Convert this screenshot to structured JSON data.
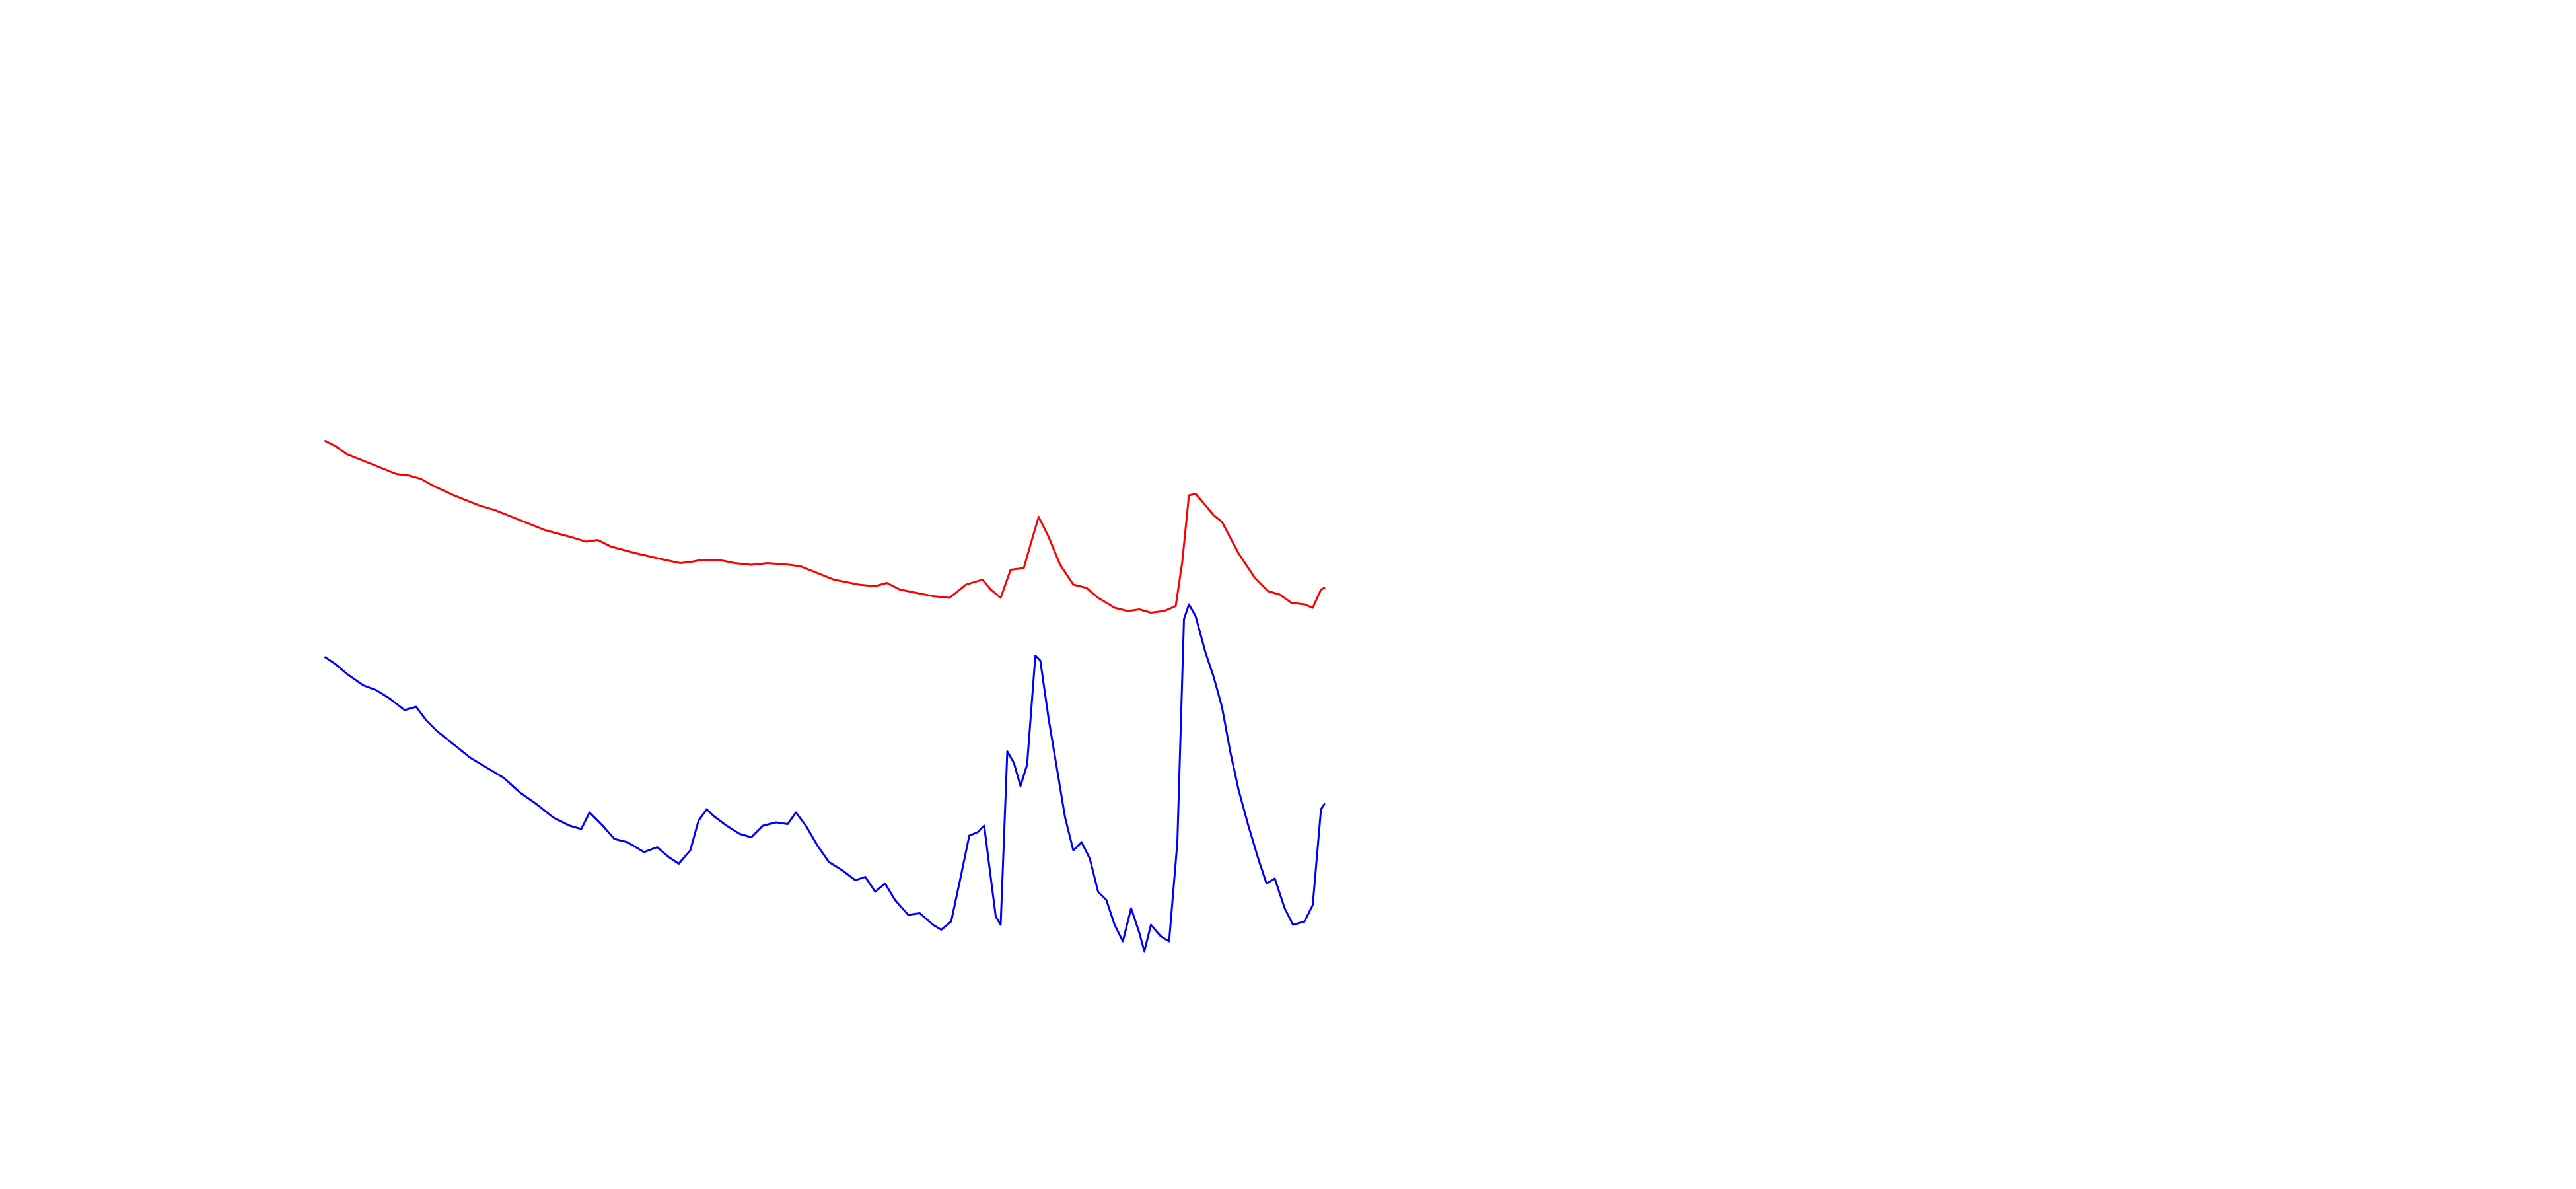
{
  "chart_data": {
    "type": "line",
    "xlim": [
      0,
      1560
    ],
    "ylim": [
      0,
      720
    ],
    "series": [
      {
        "color": "#ff0000",
        "x": [
          197,
          203,
          210,
          220,
          230,
          240,
          248,
          255,
          262,
          275,
          290,
          300,
          315,
          330,
          345,
          355,
          362,
          370,
          385,
          398,
          412,
          420,
          425,
          435,
          445,
          455,
          465,
          478,
          485,
          495,
          505,
          520,
          530,
          537,
          545,
          555,
          565,
          575,
          585,
          595,
          600,
          606,
          612,
          620,
          624,
          629,
          635,
          642,
          650,
          658,
          665,
          675,
          683,
          690,
          697,
          705,
          712,
          716,
          720,
          724,
          730,
          735,
          740,
          750,
          760,
          768,
          775,
          782,
          790,
          795,
          800,
          802
        ],
        "values": [
          453,
          450,
          445,
          441,
          437,
          433,
          432,
          430,
          426,
          420,
          414,
          411,
          405,
          399,
          395,
          392,
          393,
          389,
          385,
          382,
          379,
          380,
          381,
          381,
          379,
          378,
          379,
          378,
          377,
          373,
          369,
          366,
          365,
          367,
          363,
          361,
          359,
          358,
          366,
          369,
          363,
          358,
          375,
          376,
          390,
          407,
          395,
          378,
          366,
          364,
          358,
          352,
          350,
          351,
          349,
          350,
          353,
          380,
          420,
          421,
          414,
          408,
          404,
          385,
          370,
          362,
          360,
          355,
          354,
          352,
          363,
          364
        ]
      },
      {
        "color": "#0000ff",
        "x": [
          197,
          203,
          210,
          220,
          228,
          236,
          245,
          252,
          258,
          265,
          275,
          285,
          295,
          305,
          315,
          325,
          335,
          345,
          352,
          357,
          365,
          372,
          380,
          390,
          398,
          405,
          411,
          418,
          423,
          428,
          432,
          440,
          448,
          455,
          462,
          470,
          477,
          482,
          488,
          495,
          502,
          510,
          518,
          524,
          530,
          536,
          542,
          550,
          557,
          565,
          570,
          576,
          582,
          587,
          592,
          596,
          603,
          606,
          610,
          614,
          618,
          622,
          627,
          630,
          635,
          640,
          645,
          650,
          655,
          660,
          665,
          670,
          675,
          680,
          685,
          690,
          693,
          697,
          703,
          708,
          713,
          717,
          720,
          724,
          730,
          735,
          740,
          745,
          750,
          756,
          762,
          767,
          772,
          778,
          783,
          790,
          795,
          800,
          802
        ],
        "values": [
          322,
          318,
          312,
          305,
          302,
          297,
          290,
          292,
          284,
          277,
          269,
          261,
          255,
          249,
          240,
          233,
          225,
          220,
          218,
          228,
          220,
          212,
          210,
          204,
          207,
          201,
          197,
          205,
          223,
          230,
          226,
          220,
          215,
          213,
          220,
          222,
          221,
          228,
          220,
          208,
          198,
          193,
          187,
          189,
          180,
          185,
          175,
          166,
          167,
          160,
          157,
          162,
          190,
          214,
          216,
          220,
          165,
          160,
          265,
          258,
          244,
          257,
          323,
          320,
          285,
          255,
          225,
          205,
          210,
          200,
          180,
          175,
          160,
          150,
          170,
          155,
          144,
          160,
          153,
          150,
          210,
          345,
          354,
          347,
          325,
          310,
          292,
          265,
          242,
          220,
          200,
          185,
          188,
          170,
          160,
          162,
          172,
          230,
          233
        ]
      }
    ]
  }
}
